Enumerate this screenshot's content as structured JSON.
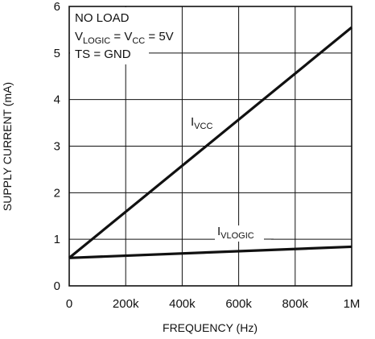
{
  "chart_data": {
    "type": "line",
    "xlabel": "FREQUENCY (Hz)",
    "ylabel": "SUPPLY CURRENT (mA)",
    "xlim": [
      0,
      1000000
    ],
    "ylim": [
      0,
      6
    ],
    "grid": true,
    "x_ticks": [
      {
        "value": 0,
        "label": "0"
      },
      {
        "value": 200000,
        "label": "200k"
      },
      {
        "value": 400000,
        "label": "400k"
      },
      {
        "value": 600000,
        "label": "600k"
      },
      {
        "value": 800000,
        "label": "800k"
      },
      {
        "value": 1000000,
        "label": "1M"
      }
    ],
    "y_ticks": [
      {
        "value": 0,
        "label": "0"
      },
      {
        "value": 1,
        "label": "1"
      },
      {
        "value": 2,
        "label": "2"
      },
      {
        "value": 3,
        "label": "3"
      },
      {
        "value": 4,
        "label": "4"
      },
      {
        "value": 5,
        "label": "5"
      },
      {
        "value": 6,
        "label": "6"
      }
    ],
    "series": [
      {
        "name_main": "I",
        "name_sub": "VCC",
        "x": [
          0,
          1000000
        ],
        "y": [
          0.6,
          5.55
        ]
      },
      {
        "name_main": "I",
        "name_sub": "VLOGIC",
        "x": [
          0,
          1000000
        ],
        "y": [
          0.6,
          0.84
        ]
      }
    ],
    "conditions": {
      "line1": "NO LOAD",
      "line2": {
        "v1": "V",
        "v1_sub": "LOGIC",
        "mid": " = V",
        "v2_sub": "CC",
        "end": " = 5V"
      },
      "line3": "TS = GND"
    }
  }
}
